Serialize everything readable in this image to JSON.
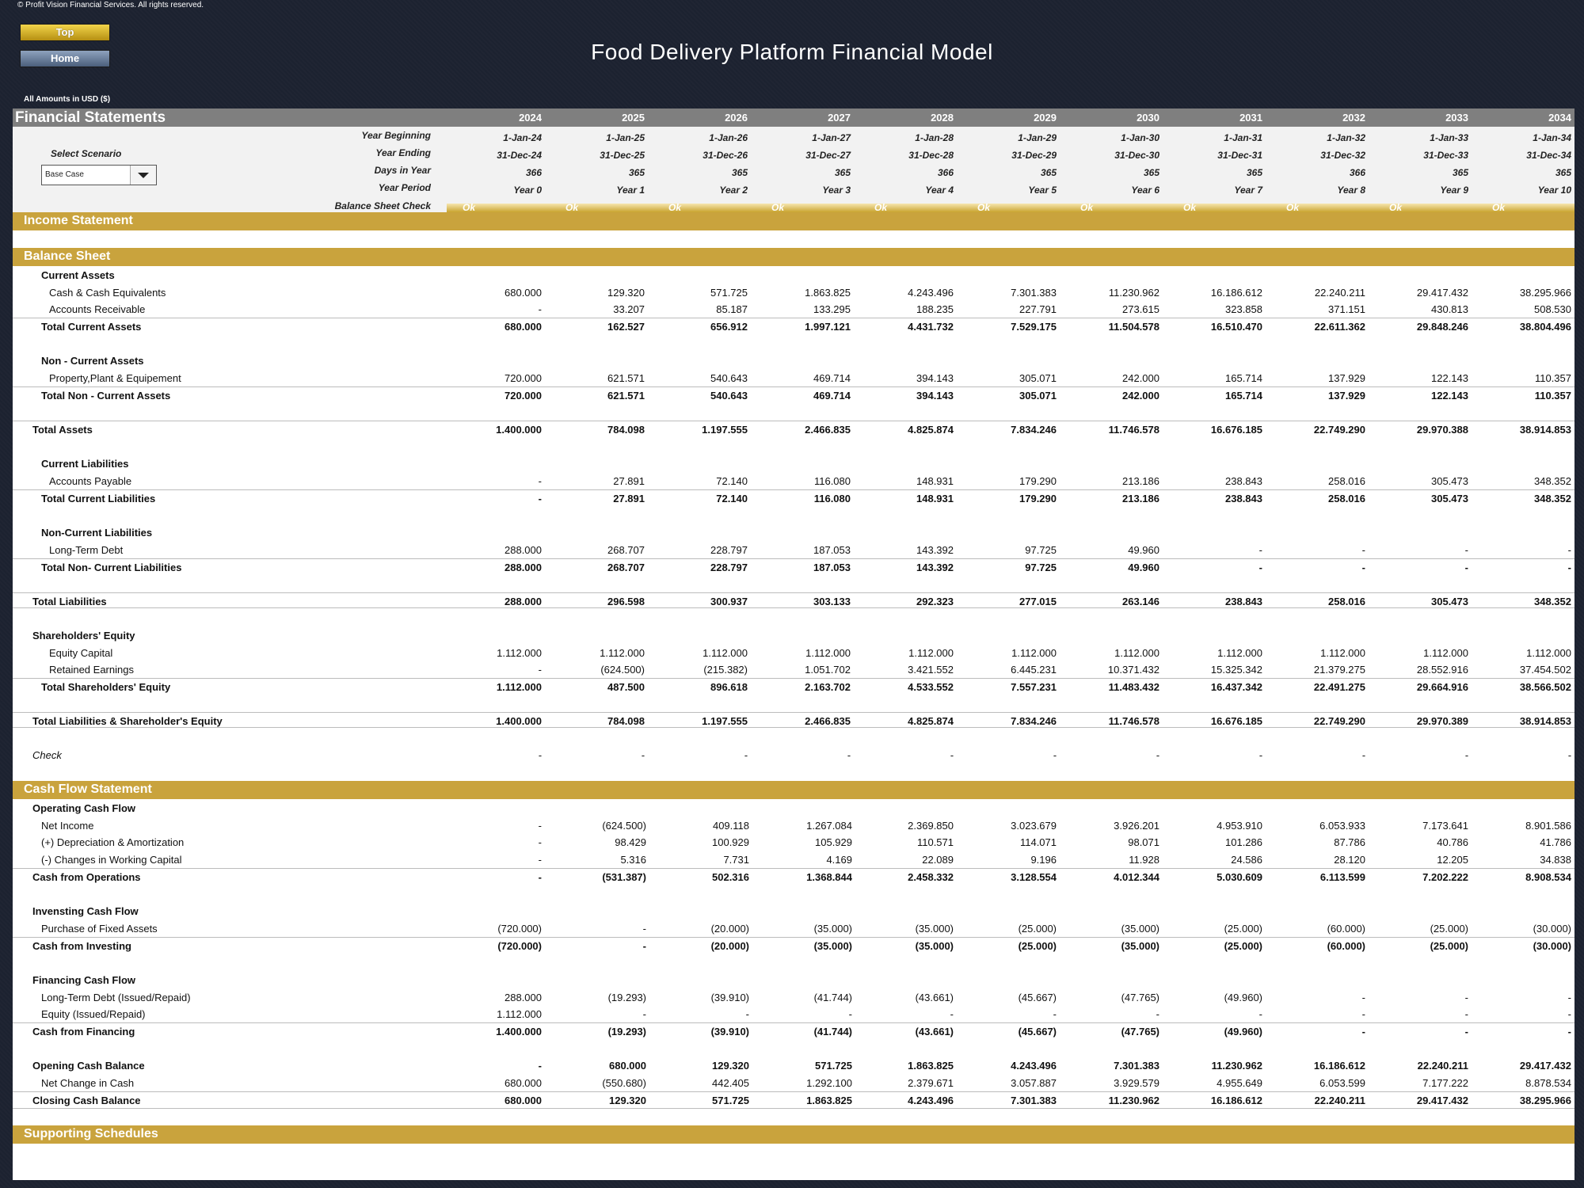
{
  "copyright": "© Profit Vision Financial Services. All rights reserved.",
  "buttons": {
    "top": "Top",
    "home": "Home"
  },
  "title": "Food Delivery Platform Financial Model",
  "amounts_label": "All Amounts in  USD ($)",
  "sheet_title": "Financial Statements",
  "years": [
    "2024",
    "2025",
    "2026",
    "2027",
    "2028",
    "2029",
    "2030",
    "2031",
    "2032",
    "2033",
    "2034"
  ],
  "scenario": {
    "label": "Select Scenario",
    "value": "Base Case"
  },
  "params": {
    "labels": {
      "begin": "Year Beginning",
      "end": "Year Ending",
      "days": "Days in Year",
      "period": "Year Period",
      "check": "Balance Sheet Check"
    },
    "begin": [
      "1-Jan-24",
      "1-Jan-25",
      "1-Jan-26",
      "1-Jan-27",
      "1-Jan-28",
      "1-Jan-29",
      "1-Jan-30",
      "1-Jan-31",
      "1-Jan-32",
      "1-Jan-33",
      "1-Jan-34"
    ],
    "end": [
      "31-Dec-24",
      "31-Dec-25",
      "31-Dec-26",
      "31-Dec-27",
      "31-Dec-28",
      "31-Dec-29",
      "31-Dec-30",
      "31-Dec-31",
      "31-Dec-32",
      "31-Dec-33",
      "31-Dec-34"
    ],
    "days": [
      "366",
      "365",
      "365",
      "365",
      "366",
      "365",
      "365",
      "365",
      "366",
      "365",
      "365"
    ],
    "period": [
      "Year 0",
      "Year 1",
      "Year 2",
      "Year 3",
      "Year 4",
      "Year 5",
      "Year 6",
      "Year 7",
      "Year 8",
      "Year 9",
      "Year 10"
    ],
    "check": [
      "Ok",
      "Ok",
      "Ok",
      "Ok",
      "Ok",
      "Ok",
      "Ok",
      "Ok",
      "Ok",
      "Ok",
      "Ok"
    ]
  },
  "sections": {
    "income": "Income Statement",
    "balance": "Balance Sheet",
    "cashflow": "Cash Flow Statement",
    "supporting": "Supporting Schedules"
  },
  "balance_rows": [
    {
      "label": "Current Assets",
      "values": []
    },
    {
      "label": "Cash & Cash Equivalents",
      "values": [
        "680.000",
        "129.320",
        "571.725",
        "1.863.825",
        "4.243.496",
        "7.301.383",
        "11.230.962",
        "16.186.612",
        "22.240.211",
        "29.417.432",
        "38.295.966"
      ]
    },
    {
      "label": "Accounts Receivable",
      "values": [
        "-",
        "33.207",
        "85.187",
        "133.295",
        "188.235",
        "227.791",
        "273.615",
        "323.858",
        "371.151",
        "430.813",
        "508.530"
      ]
    },
    {
      "label": "Total Current Assets",
      "values": [
        "680.000",
        "162.527",
        "656.912",
        "1.997.121",
        "4.431.732",
        "7.529.175",
        "11.504.578",
        "16.510.470",
        "22.611.362",
        "29.848.246",
        "38.804.496"
      ]
    },
    {
      "label": "Non - Current Assets",
      "values": []
    },
    {
      "label": "Property,Plant & Equipement",
      "values": [
        "720.000",
        "621.571",
        "540.643",
        "469.714",
        "394.143",
        "305.071",
        "242.000",
        "165.714",
        "137.929",
        "122.143",
        "110.357"
      ]
    },
    {
      "label": "Total Non - Current Assets",
      "values": [
        "720.000",
        "621.571",
        "540.643",
        "469.714",
        "394.143",
        "305.071",
        "242.000",
        "165.714",
        "137.929",
        "122.143",
        "110.357"
      ]
    },
    {
      "label": "Total Assets",
      "values": [
        "1.400.000",
        "784.098",
        "1.197.555",
        "2.466.835",
        "4.825.874",
        "7.834.246",
        "11.746.578",
        "16.676.185",
        "22.749.290",
        "29.970.388",
        "38.914.853"
      ]
    },
    {
      "label": "Current Liabilities",
      "values": []
    },
    {
      "label": "Accounts Payable",
      "values": [
        "-",
        "27.891",
        "72.140",
        "116.080",
        "148.931",
        "179.290",
        "213.186",
        "238.843",
        "258.016",
        "305.473",
        "348.352"
      ]
    },
    {
      "label": "Total Current Liabilities",
      "values": [
        "-",
        "27.891",
        "72.140",
        "116.080",
        "148.931",
        "179.290",
        "213.186",
        "238.843",
        "258.016",
        "305.473",
        "348.352"
      ]
    },
    {
      "label": "Non-Current Liabilities",
      "values": []
    },
    {
      "label": "Long-Term Debt",
      "values": [
        "288.000",
        "268.707",
        "228.797",
        "187.053",
        "143.392",
        "97.725",
        "49.960",
        "-",
        "-",
        "-",
        "-"
      ]
    },
    {
      "label": "Total Non- Current Liabilities",
      "values": [
        "288.000",
        "268.707",
        "228.797",
        "187.053",
        "143.392",
        "97.725",
        "49.960",
        "-",
        "-",
        "-",
        "-"
      ]
    },
    {
      "label": "Total Liabilities",
      "values": [
        "288.000",
        "296.598",
        "300.937",
        "303.133",
        "292.323",
        "277.015",
        "263.146",
        "238.843",
        "258.016",
        "305.473",
        "348.352"
      ]
    },
    {
      "label": "Shareholders' Equity",
      "values": []
    },
    {
      "label": "Equity Capital",
      "values": [
        "1.112.000",
        "1.112.000",
        "1.112.000",
        "1.112.000",
        "1.112.000",
        "1.112.000",
        "1.112.000",
        "1.112.000",
        "1.112.000",
        "1.112.000",
        "1.112.000"
      ]
    },
    {
      "label": "Retained Earnings",
      "values": [
        "-",
        "(624.500)",
        "(215.382)",
        "1.051.702",
        "3.421.552",
        "6.445.231",
        "10.371.432",
        "15.325.342",
        "21.379.275",
        "28.552.916",
        "37.454.502"
      ]
    },
    {
      "label": "Total Shareholders' Equity",
      "values": [
        "1.112.000",
        "487.500",
        "896.618",
        "2.163.702",
        "4.533.552",
        "7.557.231",
        "11.483.432",
        "16.437.342",
        "22.491.275",
        "29.664.916",
        "38.566.502"
      ]
    },
    {
      "label": "Total Liabilities & Shareholder's Equity",
      "values": [
        "1.400.000",
        "784.098",
        "1.197.555",
        "2.466.835",
        "4.825.874",
        "7.834.246",
        "11.746.578",
        "16.676.185",
        "22.749.290",
        "29.970.389",
        "38.914.853"
      ]
    },
    {
      "label": "Check",
      "values": [
        "-",
        "-",
        "-",
        "-",
        "-",
        "-",
        "-",
        "-",
        "-",
        "-",
        "-"
      ]
    }
  ],
  "cash_rows": [
    {
      "label": "Operating Cash Flow",
      "values": []
    },
    {
      "label": "Net Income",
      "values": [
        "-",
        "(624.500)",
        "409.118",
        "1.267.084",
        "2.369.850",
        "3.023.679",
        "3.926.201",
        "4.953.910",
        "6.053.933",
        "7.173.641",
        "8.901.586"
      ]
    },
    {
      "label": "(+) Depreciation & Amortization",
      "values": [
        "-",
        "98.429",
        "100.929",
        "105.929",
        "110.571",
        "114.071",
        "98.071",
        "101.286",
        "87.786",
        "40.786",
        "41.786"
      ]
    },
    {
      "label": "(-) Changes in Working Capital",
      "values": [
        "-",
        "5.316",
        "7.731",
        "4.169",
        "22.089",
        "9.196",
        "11.928",
        "24.586",
        "28.120",
        "12.205",
        "34.838"
      ]
    },
    {
      "label": "Cash from Operations",
      "values": [
        "-",
        "(531.387)",
        "502.316",
        "1.368.844",
        "2.458.332",
        "3.128.554",
        "4.012.344",
        "5.030.609",
        "6.113.599",
        "7.202.222",
        "8.908.534"
      ]
    },
    {
      "label": "Invensting Cash Flow",
      "values": []
    },
    {
      "label": "Purchase of Fixed Assets",
      "values": [
        "(720.000)",
        "-",
        "(20.000)",
        "(35.000)",
        "(35.000)",
        "(25.000)",
        "(35.000)",
        "(25.000)",
        "(60.000)",
        "(25.000)",
        "(30.000)"
      ]
    },
    {
      "label": "Cash from Investing",
      "values": [
        "(720.000)",
        "-",
        "(20.000)",
        "(35.000)",
        "(35.000)",
        "(25.000)",
        "(35.000)",
        "(25.000)",
        "(60.000)",
        "(25.000)",
        "(30.000)"
      ]
    },
    {
      "label": "Financing Cash Flow",
      "values": []
    },
    {
      "label": "Long-Term Debt (Issued/Repaid)",
      "values": [
        "288.000",
        "(19.293)",
        "(39.910)",
        "(41.744)",
        "(43.661)",
        "(45.667)",
        "(47.765)",
        "(49.960)",
        "-",
        "-",
        "-"
      ]
    },
    {
      "label": "Equity (Issued/Repaid)",
      "values": [
        "1.112.000",
        "-",
        "-",
        "-",
        "-",
        "-",
        "-",
        "-",
        "-",
        "-",
        "-"
      ]
    },
    {
      "label": "Cash from Financing",
      "values": [
        "1.400.000",
        "(19.293)",
        "(39.910)",
        "(41.744)",
        "(43.661)",
        "(45.667)",
        "(47.765)",
        "(49.960)",
        "-",
        "-",
        "-"
      ]
    },
    {
      "label": "Opening Cash Balance",
      "values": [
        "-",
        "680.000",
        "129.320",
        "571.725",
        "1.863.825",
        "4.243.496",
        "7.301.383",
        "11.230.962",
        "16.186.612",
        "22.240.211",
        "29.417.432"
      ]
    },
    {
      "label": "Net Change in Cash",
      "values": [
        "680.000",
        "(550.680)",
        "442.405",
        "1.292.100",
        "2.379.671",
        "3.057.887",
        "3.929.579",
        "4.955.649",
        "6.053.599",
        "7.177.222",
        "8.878.534"
      ]
    },
    {
      "label": "Closing Cash Balance",
      "values": [
        "680.000",
        "129.320",
        "571.725",
        "1.863.825",
        "4.243.496",
        "7.301.383",
        "11.230.962",
        "16.186.612",
        "22.240.211",
        "29.417.432",
        "38.295.966"
      ]
    }
  ]
}
